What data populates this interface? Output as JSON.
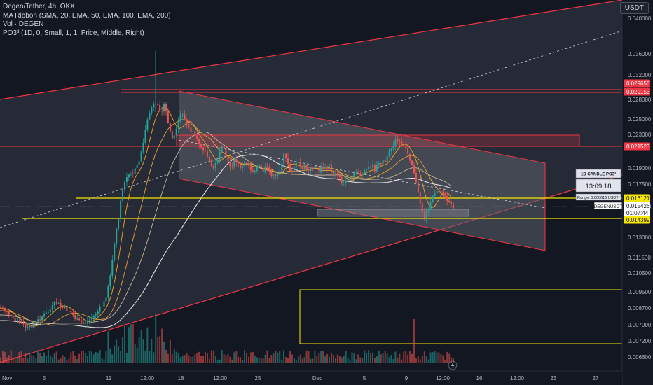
{
  "header": {
    "title": "Degen/Tether, 4h, OKX",
    "indicators": [
      "MA Ribbon (SMA, 20, EMA, 50, EMA, 100, EMA, 200)",
      "Vol · DEGEN",
      "PO3³ (1D, 0, Small, 1, 1, Price, Middle, Right)"
    ],
    "currency": "USDT"
  },
  "chart_data": {
    "type": "candlestick",
    "symbol": "DEGENUSDT",
    "y_ticks": [
      "0.040000",
      "0.036000",
      "0.032000",
      "0.028000",
      "0.025000",
      "0.023000",
      "0.019000",
      "0.017500",
      "0.015000",
      "0.013000",
      "0.011500",
      "0.010500",
      "0.009500",
      "0.008700",
      "0.007900",
      "0.007200",
      "0.006600"
    ],
    "x_ticks": [
      "Nov",
      "5",
      "11",
      "12:00",
      "18",
      "12:00",
      "25",
      "Dec",
      "5",
      "9",
      "12:00",
      "16",
      "12:00",
      "23",
      "27"
    ],
    "price_tags": [
      {
        "label": "0.029656",
        "color": "#f23645"
      },
      {
        "label": "0.029153",
        "color": "#f23645"
      },
      {
        "label": "0.021523",
        "color": "#f23645"
      },
      {
        "label": "0.016121",
        "color": "#f7e600"
      },
      {
        "label": "0.015426",
        "color": "#ffffff"
      },
      {
        "label": "01:07:44",
        "color": "#ffffff"
      },
      {
        "label": "0.014399",
        "color": "#f7e600"
      }
    ],
    "current_price": "0.015426",
    "countdown": "01:07:44",
    "po3_box": {
      "title": "1D CANDLE PO3³",
      "timer": "13:09:18",
      "range": "Range: 0.000616 USDT"
    },
    "symbol_badge": "DEGENUSDT",
    "colors": {
      "up": "#26a69a",
      "down": "#ef5350",
      "channel": "#f23645",
      "levels": "#f7e600",
      "sma20": "#f5a623",
      "ema50": "#e9a23b",
      "ema100": "#c8b79a",
      "ema200": "#e0e0e0"
    }
  }
}
